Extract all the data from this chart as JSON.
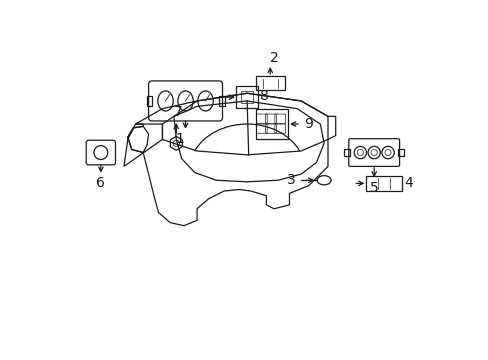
{
  "background_color": "#ffffff",
  "line_color": "#1a1a1a",
  "fig_width": 4.89,
  "fig_height": 3.6,
  "dpi": 100,
  "font_size": 10
}
